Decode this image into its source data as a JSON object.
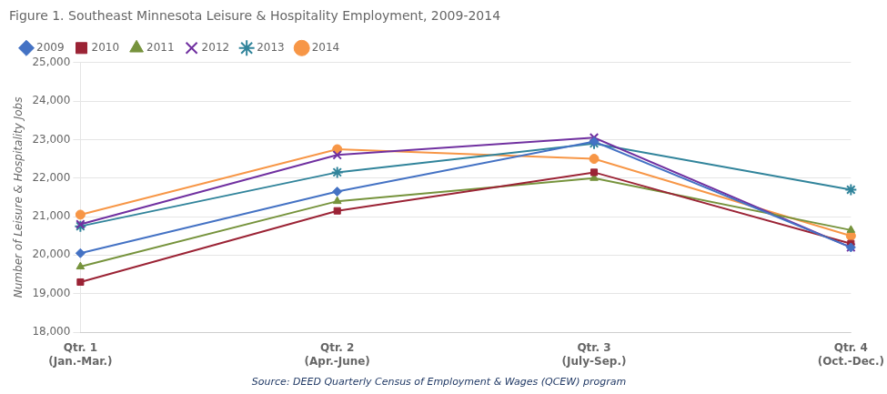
{
  "chart_data": {
    "type": "line",
    "title": "Figure 1. Southeast Minnesota Leisure & Hospitality Employment, 2009-2014",
    "ylabel": "Number of Leisure & Hospitality Jobs",
    "annotations": [
      "Source: DEED Quarterly Census of Employment & Wages (QCEW) program"
    ],
    "categories": [
      "Qtr. 1\n(Jan.-Mar.)",
      "Qtr. 2\n(Apr.-June)",
      "Qtr. 3\n(July-Sep.)",
      "Qtr. 4\n(Oct.-Dec.)"
    ],
    "series": [
      {
        "name": "2009",
        "color": "#4472C4",
        "marker": "diamond",
        "values": [
          20050,
          21650,
          22950,
          20200
        ]
      },
      {
        "name": "2010",
        "color": "#9B2335",
        "marker": "square",
        "values": [
          19300,
          21150,
          22150,
          20300
        ]
      },
      {
        "name": "2011",
        "color": "#76933C",
        "marker": "triangle",
        "values": [
          19700,
          21400,
          22000,
          20650
        ]
      },
      {
        "name": "2012",
        "color": "#7030A0",
        "marker": "x",
        "values": [
          20800,
          22600,
          23050,
          20200
        ]
      },
      {
        "name": "2013",
        "color": "#31849B",
        "marker": "star",
        "values": [
          20750,
          22150,
          22900,
          21700
        ]
      },
      {
        "name": "2014",
        "color": "#F79646",
        "marker": "circle",
        "values": [
          21050,
          22750,
          22500,
          20500
        ]
      }
    ],
    "ylim": [
      18000,
      25000
    ],
    "yticks": [
      {
        "value": 18000,
        "label": "18,000"
      },
      {
        "value": 19000,
        "label": "19,000"
      },
      {
        "value": 20000,
        "label": "20,000"
      },
      {
        "value": 21000,
        "label": "21,000"
      },
      {
        "value": 22000,
        "label": "22,000"
      },
      {
        "value": 23000,
        "label": "23,000"
      },
      {
        "value": 24000,
        "label": "24,000"
      },
      {
        "value": 25000,
        "label": "25,000"
      }
    ],
    "grid": "y",
    "legend": "upper left"
  }
}
